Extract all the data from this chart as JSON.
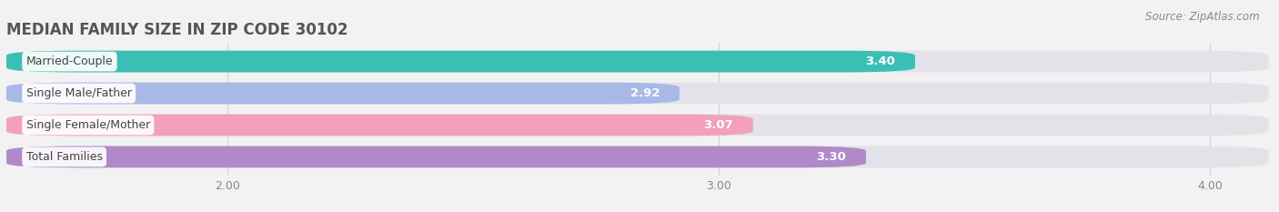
{
  "title": "MEDIAN FAMILY SIZE IN ZIP CODE 30102",
  "source": "Source: ZipAtlas.com",
  "categories": [
    "Married-Couple",
    "Single Male/Father",
    "Single Female/Mother",
    "Total Families"
  ],
  "values": [
    3.4,
    2.92,
    3.07,
    3.3
  ],
  "bar_colors": [
    "#3bbfb5",
    "#aab8e8",
    "#f2a0bc",
    "#b08ac8"
  ],
  "bg_bar_color": "#e2e2e8",
  "xlim_left": 1.55,
  "xlim_right": 4.12,
  "xticks": [
    2.0,
    3.0,
    4.0
  ],
  "xtick_labels": [
    "2.00",
    "3.00",
    "4.00"
  ],
  "label_fontsize": 9,
  "value_fontsize": 9.5,
  "title_fontsize": 12,
  "bar_height": 0.68,
  "bar_gap": 0.32,
  "background_color": "#f2f2f2",
  "label_bg_color": "#ffffff",
  "value_color": "#ffffff",
  "grid_color": "#d0d0d8",
  "title_color": "#555555",
  "source_color": "#888888",
  "tick_color": "#888888"
}
